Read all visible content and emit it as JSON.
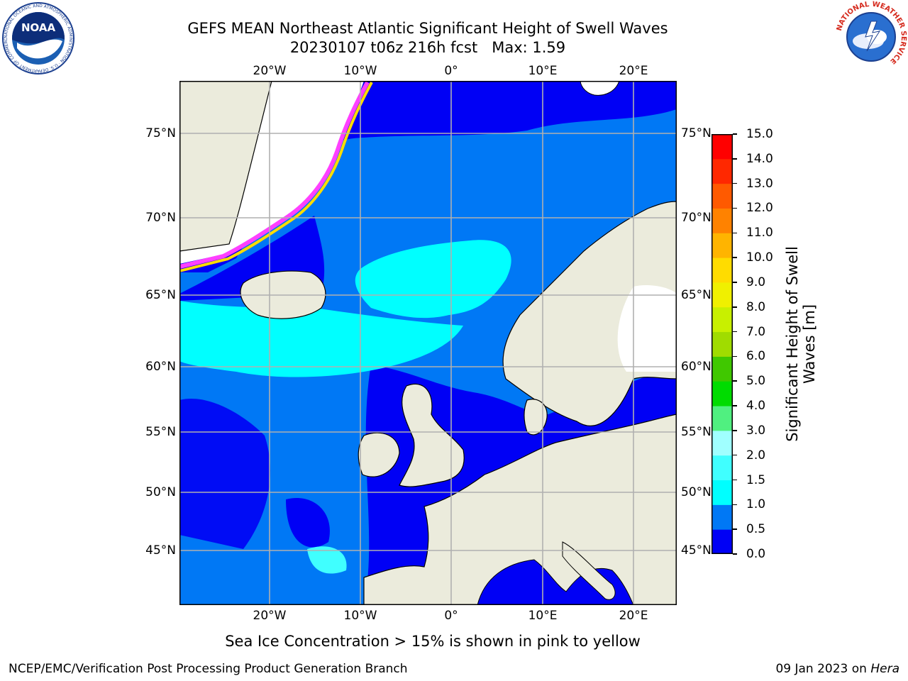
{
  "title": {
    "line1": "GEFS MEAN Northeast Atlantic Significant Height of Swell Waves",
    "line2": "20230107 t06z 216h fcst   Max: 1.59"
  },
  "axes": {
    "lon_ticks": [
      "20°W",
      "10°W",
      "0°",
      "10°E",
      "20°E"
    ],
    "lat_ticks": [
      "75°N",
      "70°N",
      "65°N",
      "60°N",
      "55°N",
      "50°N",
      "45°N"
    ]
  },
  "colorbar": {
    "label": "Significant Height of Swell Waves [m]",
    "ticks": [
      "0.0",
      "0.5",
      "1.0",
      "1.5",
      "2.0",
      "3.0",
      "4.0",
      "5.0",
      "6.0",
      "7.0",
      "8.0",
      "9.0",
      "10.0",
      "11.0",
      "12.0",
      "13.0",
      "14.0",
      "15.0"
    ],
    "colors": [
      "#0000f5",
      "#0078f5",
      "#00ffff",
      "#40ffff",
      "#a0ffff",
      "#50f080",
      "#00dc00",
      "#40c800",
      "#a0dc00",
      "#c8f000",
      "#f0f000",
      "#ffdc00",
      "#ffb400",
      "#ff8200",
      "#ff5a00",
      "#ff2800",
      "#ff0000"
    ]
  },
  "note": "Sea Ice Concentration > 15% is shown in pink to yellow",
  "footer": {
    "left": "NCEP/EMC/Verification Post Processing Product Generation Branch",
    "date": "09 Jan 2023 on",
    "machine": "Hera"
  },
  "logos": {
    "noaa": "NOAA",
    "noaa_ring": "NATIONAL OCEANIC AND ATMOSPHERIC ADMINISTRATION · U.S. DEPARTMENT OF COMMERCE",
    "nws_ring": "NATIONAL WEATHER SERVICE"
  }
}
